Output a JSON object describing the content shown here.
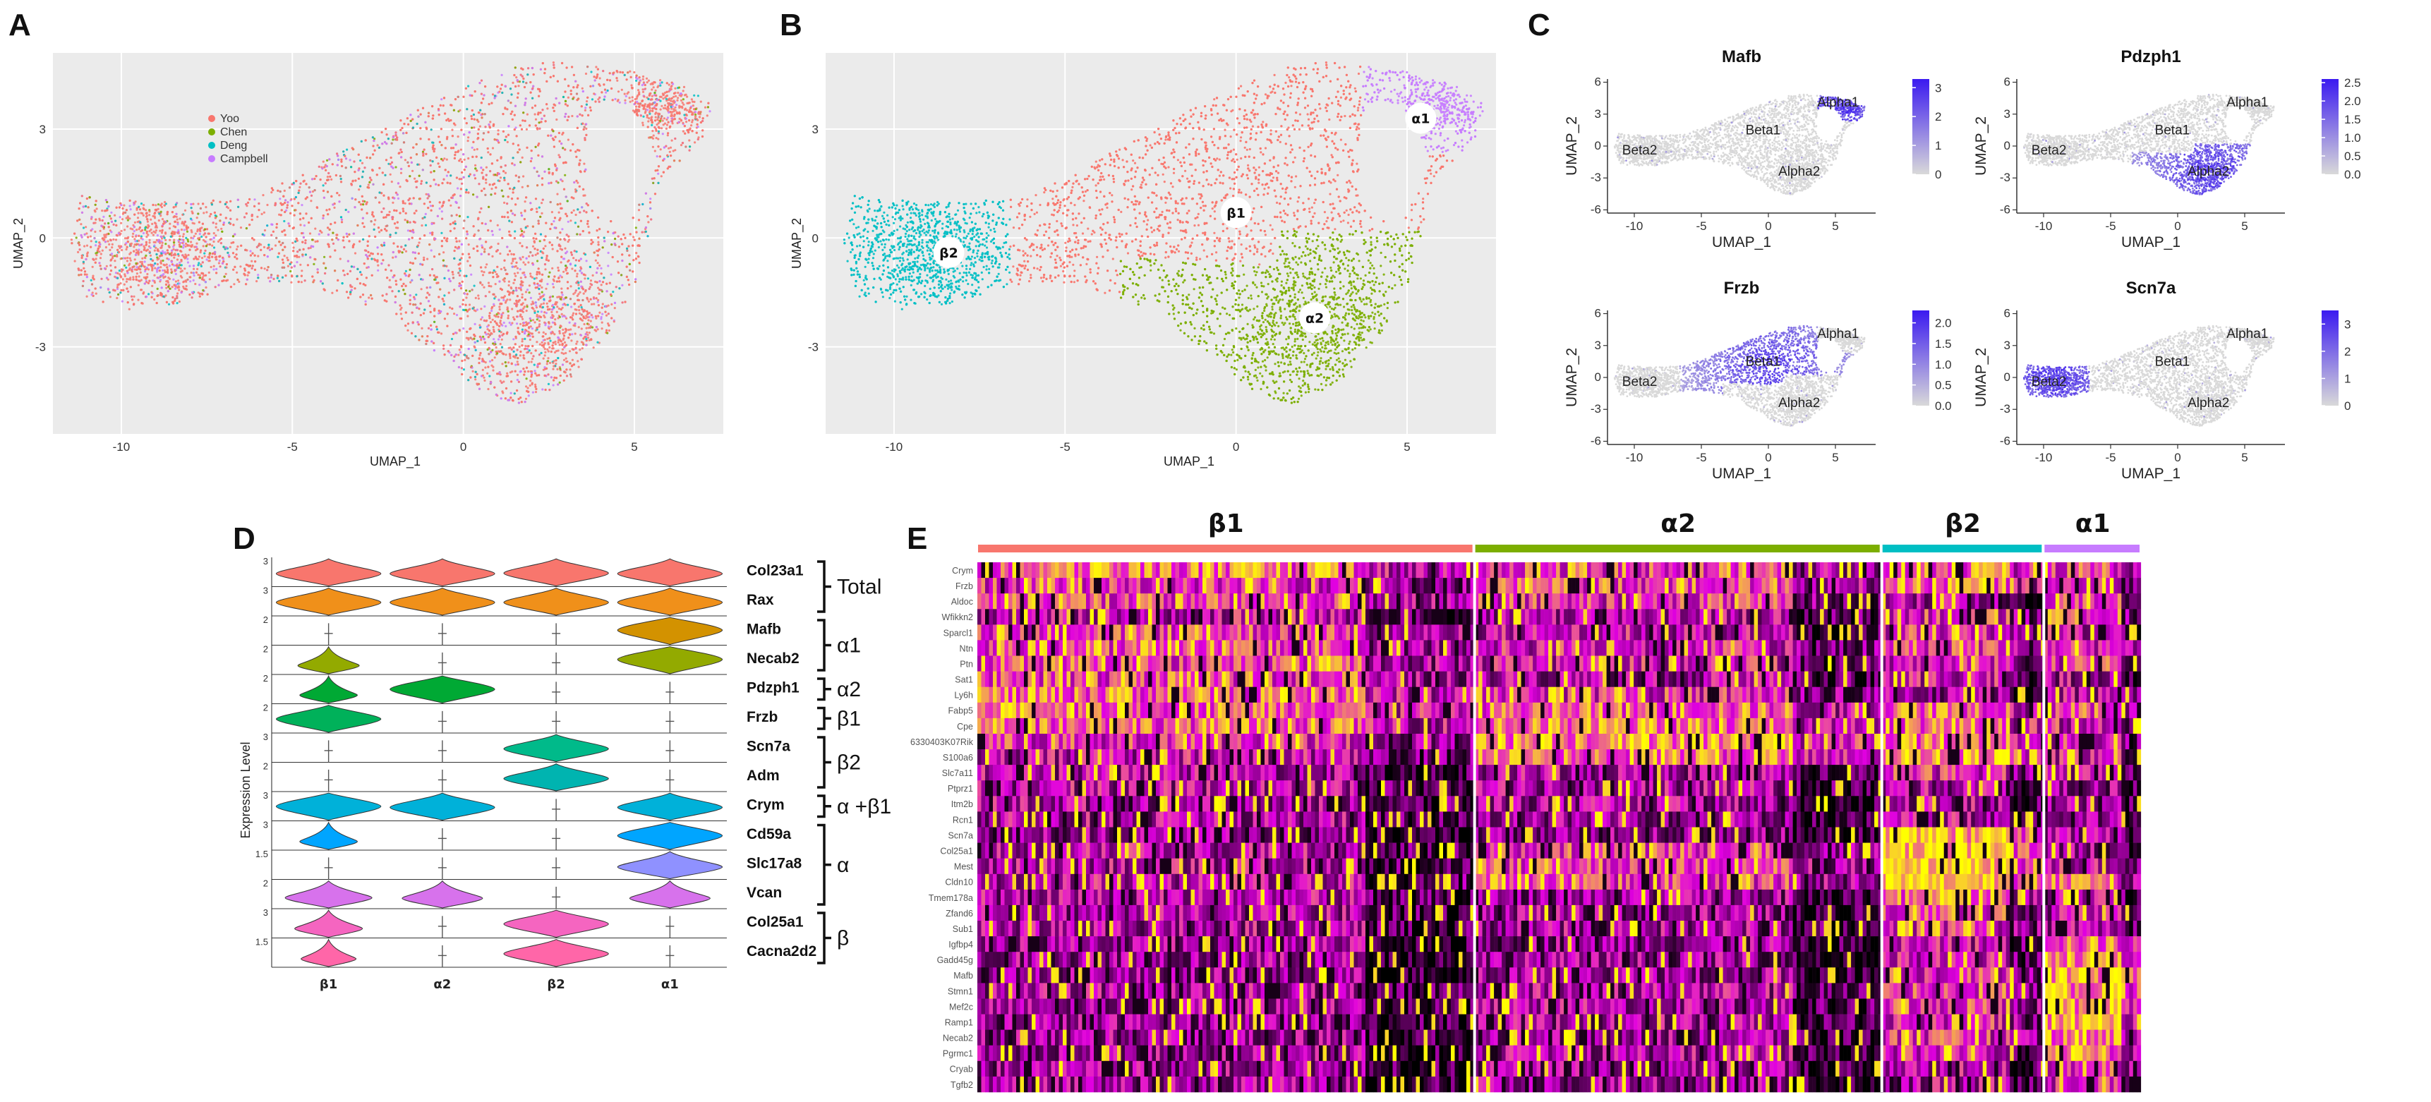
{
  "panels": {
    "a": "A",
    "b": "B",
    "c": "C",
    "d": "D",
    "e": "E"
  },
  "colors": {
    "yoo": "#F8766D",
    "chen": "#7CAE00",
    "deng": "#00BFC4",
    "campbell": "#C77CFF",
    "beta1": "#F8766D",
    "alpha2": "#7CAE00",
    "beta2": "#00BFC4",
    "alpha1": "#C77CFF",
    "featureLow": "#D9D9D9",
    "featureHigh": "#3B1AF0",
    "hmLow": "#000000",
    "hmMid": "#E100E1",
    "hmHigh": "#FFFF00"
  },
  "chart_data": [
    {
      "id": "A",
      "type": "scatter",
      "title": "",
      "xlabel": "UMAP_1",
      "ylabel": "UMAP_2",
      "xticks": [
        "-10",
        "-5",
        "0",
        "5"
      ],
      "xtick_values": [
        -10,
        -5,
        0,
        5
      ],
      "yticks": [
        "-3",
        "0",
        "3"
      ],
      "ytick_values": [
        -3,
        0,
        3
      ],
      "xlim": [
        -12,
        7.6
      ],
      "ylim": [
        -5.4,
        5.1
      ],
      "legend_position": "top-left",
      "series": [
        {
          "name": "Yoo",
          "color": "#F8766D"
        },
        {
          "name": "Chen",
          "color": "#7CAE00"
        },
        {
          "name": "Deng",
          "color": "#00BFC4"
        },
        {
          "name": "Campbell",
          "color": "#C77CFF"
        }
      ]
    },
    {
      "id": "B",
      "type": "scatter",
      "title": "",
      "xlabel": "UMAP_1",
      "ylabel": "UMAP_2",
      "xticks": [
        "-10",
        "-5",
        "0",
        "5"
      ],
      "xtick_values": [
        -10,
        -5,
        0,
        5
      ],
      "yticks": [
        "-3",
        "0",
        "3"
      ],
      "ytick_values": [
        -3,
        0,
        3
      ],
      "xlim": [
        -12,
        7.6
      ],
      "ylim": [
        -5.4,
        5.1
      ],
      "clusters": [
        {
          "label": "β1",
          "color": "#F8766D",
          "center": [
            0,
            0.7
          ]
        },
        {
          "label": "α2",
          "color": "#7CAE00",
          "center": [
            2.3,
            -2.2
          ]
        },
        {
          "label": "β2",
          "color": "#00BFC4",
          "center": [
            -8.4,
            -0.4
          ]
        },
        {
          "label": "α1",
          "color": "#C77CFF",
          "center": [
            5.4,
            3.3
          ]
        }
      ]
    },
    {
      "id": "C",
      "type": "scatter",
      "xlabel": "UMAP_1",
      "ylabel": "UMAP_2",
      "xticks": [
        "-10",
        "-5",
        "0",
        "5"
      ],
      "xtick_values": [
        -10,
        -5,
        0,
        5
      ],
      "yticks": [
        "-6",
        "-3",
        "0",
        "3",
        "6"
      ],
      "ytick_values": [
        -6,
        -3,
        0,
        3,
        6
      ],
      "xlim": [
        -12,
        8
      ],
      "ylim": [
        -6.3,
        6.3
      ],
      "cluster_labels": [
        "Beta2",
        "Beta1",
        "Alpha1",
        "Alpha2"
      ],
      "features": [
        {
          "gene": "Mafb",
          "scale": [
            "3",
            "2",
            "1",
            "0"
          ],
          "max": 3.3,
          "high_cluster": "Alpha1"
        },
        {
          "gene": "Pdzph1",
          "scale": [
            "2.5",
            "2.0",
            "1.5",
            "1.0",
            "0.5",
            "0.0"
          ],
          "max": 2.6,
          "high_cluster": "Alpha2"
        },
        {
          "gene": "Frzb",
          "scale": [
            "2.0",
            "1.5",
            "1.0",
            "0.5",
            "0.0"
          ],
          "max": 2.3,
          "high_cluster": "Beta1"
        },
        {
          "gene": "Scn7a",
          "scale": [
            "3",
            "2",
            "1",
            "0"
          ],
          "max": 3.5,
          "high_cluster": "Beta2"
        }
      ]
    },
    {
      "id": "D",
      "type": "violin",
      "ylabel": "Expression Level",
      "categories": [
        "β1",
        "α2",
        "β2",
        "α1"
      ],
      "genes": [
        {
          "name": "Col23a1",
          "ymax": "3",
          "color": "#F8766D",
          "levels": [
            0.55,
            0.55,
            0.6,
            0.55
          ]
        },
        {
          "name": "Rax",
          "ymax": "3",
          "color": "#F0901A",
          "levels": [
            0.6,
            0.6,
            0.6,
            0.6
          ]
        },
        {
          "name": "Mafb",
          "ymax": "2",
          "color": "#D39200",
          "levels": [
            0.02,
            0.01,
            0.01,
            0.75
          ]
        },
        {
          "name": "Necab2",
          "ymax": "2",
          "color": "#93AA00",
          "levels": [
            0.15,
            0.02,
            0.02,
            0.75
          ]
        },
        {
          "name": "Pdzph1",
          "ymax": "2",
          "color": "#00A934",
          "levels": [
            0.12,
            0.7,
            0.02,
            0.02
          ]
        },
        {
          "name": "Frzb",
          "ymax": "2",
          "color": "#00B15A",
          "levels": [
            0.65,
            0.02,
            0.01,
            0.01
          ]
        },
        {
          "name": "Scn7a",
          "ymax": "3",
          "color": "#00BA8A",
          "levels": [
            0.01,
            0.01,
            0.6,
            0.01
          ]
        },
        {
          "name": "Adm",
          "ymax": "2",
          "color": "#00B4B0",
          "levels": [
            0.02,
            0.01,
            0.55,
            0.01
          ]
        },
        {
          "name": "Crym",
          "ymax": "3",
          "color": "#00B1D9",
          "levels": [
            0.7,
            0.6,
            0.02,
            0.6
          ]
        },
        {
          "name": "Cd59a",
          "ymax": "3",
          "color": "#00A5FF",
          "levels": [
            0.12,
            0.02,
            0.05,
            0.7
          ]
        },
        {
          "name": "Slc17a8",
          "ymax": "1.5",
          "color": "#8F91FF",
          "levels": [
            0.02,
            0.01,
            0.01,
            0.5
          ]
        },
        {
          "name": "Vcan",
          "ymax": "2",
          "color": "#D772EC",
          "levels": [
            0.35,
            0.3,
            0.02,
            0.3
          ]
        },
        {
          "name": "Col25a1",
          "ymax": "3",
          "color": "#F565C0",
          "levels": [
            0.2,
            0.01,
            0.65,
            0.01
          ]
        },
        {
          "name": "Cacna2d2",
          "ymax": "1.5",
          "color": "#FF66A8",
          "levels": [
            0.1,
            0.01,
            0.6,
            0.01
          ]
        }
      ],
      "groups": [
        {
          "label": "Total",
          "start": 0,
          "end": 1
        },
        {
          "label": "α1",
          "start": 2,
          "end": 3
        },
        {
          "label": "α2",
          "start": 4,
          "end": 4
        },
        {
          "label": "β1",
          "start": 5,
          "end": 5
        },
        {
          "label": "β2",
          "start": 6,
          "end": 7
        },
        {
          "label": "α +β1",
          "start": 8,
          "end": 8
        },
        {
          "label": "α",
          "start": 9,
          "end": 11
        },
        {
          "label": "β",
          "start": 12,
          "end": 13
        }
      ]
    },
    {
      "id": "E",
      "type": "heatmap",
      "clusters": [
        {
          "label": "β1",
          "color": "#F8766D",
          "weight": 0.442
        },
        {
          "label": "α2",
          "color": "#7CAE00",
          "weight": 0.362
        },
        {
          "label": "β2",
          "color": "#00BFC4",
          "weight": 0.144
        },
        {
          "label": "α1",
          "color": "#C77CFF",
          "weight": 0.087
        }
      ],
      "rows": [
        "Crym",
        "Frzb",
        "Aldoc",
        "Wfikkn2",
        "Sparcl1",
        "Ntn",
        "Ptn",
        "Sat1",
        "Ly6h",
        "Fabp5",
        "Cpe",
        "6330403K07Rik",
        "S100a6",
        "Slc7a11",
        "Ptprz1",
        "Itm2b",
        "Rcn1",
        "Scn7a",
        "Col25a1",
        "Mest",
        "Cldn10",
        "Tmem178a",
        "Zfand6",
        "Sub1",
        "Igfbp4",
        "Gadd45g",
        "Mafb",
        "Stmn1",
        "Mef2c",
        "Ramp1",
        "Necab2",
        "Pgrmc1",
        "Cryab",
        "Tgfb2"
      ],
      "row_means": [
        [
          0.7,
          0.62,
          0.7,
          0.62
        ],
        [
          0.55,
          0.62,
          0.7,
          0.52
        ],
        [
          0.62,
          0.55,
          0.35,
          0.55
        ],
        [
          0.45,
          0.42,
          0.55,
          0.62
        ],
        [
          0.62,
          0.45,
          0.55,
          0.45
        ],
        [
          0.62,
          0.5,
          0.62,
          0.55
        ],
        [
          0.62,
          0.48,
          0.5,
          0.55
        ],
        [
          0.62,
          0.4,
          0.5,
          0.4
        ],
        [
          0.7,
          0.55,
          0.35,
          0.45
        ],
        [
          0.72,
          0.68,
          0.7,
          0.6
        ],
        [
          0.7,
          0.72,
          0.72,
          0.5
        ],
        [
          0.55,
          0.78,
          0.72,
          0.5
        ],
        [
          0.45,
          0.7,
          0.82,
          0.45
        ],
        [
          0.4,
          0.4,
          0.55,
          0.45
        ],
        [
          0.42,
          0.4,
          0.4,
          0.35
        ],
        [
          0.4,
          0.38,
          0.4,
          0.35
        ],
        [
          0.4,
          0.35,
          0.42,
          0.35
        ],
        [
          0.3,
          0.3,
          0.9,
          0.35
        ],
        [
          0.42,
          0.62,
          0.92,
          0.35
        ],
        [
          0.42,
          0.62,
          0.92,
          0.45
        ],
        [
          0.45,
          0.6,
          0.92,
          0.65
        ],
        [
          0.4,
          0.35,
          0.7,
          0.4
        ],
        [
          0.38,
          0.35,
          0.62,
          0.4
        ],
        [
          0.4,
          0.38,
          0.55,
          0.42
        ],
        [
          0.35,
          0.35,
          0.45,
          0.7
        ],
        [
          0.35,
          0.35,
          0.45,
          0.8
        ],
        [
          0.32,
          0.35,
          0.55,
          0.85
        ],
        [
          0.4,
          0.4,
          0.6,
          0.8
        ],
        [
          0.35,
          0.4,
          0.6,
          0.8
        ],
        [
          0.35,
          0.38,
          0.55,
          0.8
        ],
        [
          0.35,
          0.38,
          0.55,
          0.78
        ],
        [
          0.35,
          0.4,
          0.5,
          0.7
        ],
        [
          0.35,
          0.35,
          0.4,
          0.55
        ],
        [
          0.35,
          0.35,
          0.4,
          0.55
        ]
      ]
    }
  ]
}
